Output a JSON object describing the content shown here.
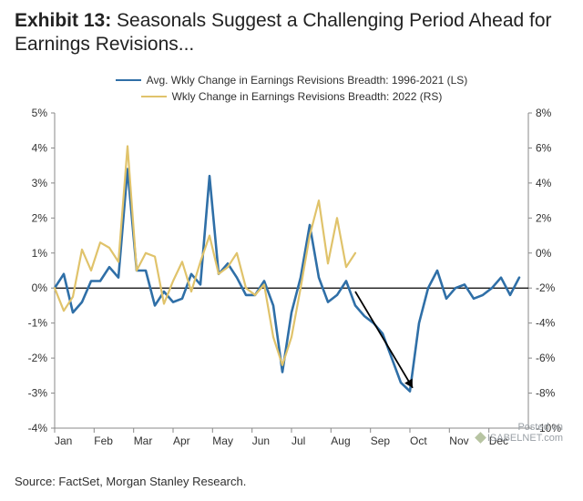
{
  "title": {
    "label": "Exhibit 13:",
    "text": "Seasonals Suggest a Challenging Period Ahead for Earnings Revisions...",
    "label_color": "#000000",
    "text_color": "#303030",
    "fontsize": 21
  },
  "chart": {
    "type": "line",
    "background_color": "#ffffff",
    "plot_left_pad": 44,
    "plot_right_pad": 44,
    "plot_top_pad": 6,
    "plot_bottom_pad": 28,
    "x": {
      "min": 0,
      "max": 52,
      "tick_positions": [
        0,
        4.33,
        8.67,
        13,
        17.33,
        21.67,
        26,
        30.33,
        34.67,
        39,
        43.33,
        47.67
      ],
      "tick_labels": [
        "Jan",
        "Feb",
        "Mar",
        "Apr",
        "May",
        "Jun",
        "Jul",
        "Aug",
        "Sep",
        "Oct",
        "Nov",
        "Dec"
      ],
      "label_fontsize": 12
    },
    "y_left": {
      "min": -4,
      "max": 5,
      "ticks": [
        5,
        4,
        3,
        2,
        1,
        0,
        -1,
        -2,
        -3,
        -4
      ],
      "suffix": "%",
      "label_fontsize": 12,
      "zero_line_color": "#000000"
    },
    "y_right": {
      "min": -10,
      "max": 8,
      "ticks": [
        8,
        6,
        4,
        2,
        0,
        -2,
        -4,
        -6,
        -8,
        -10
      ],
      "suffix": "%",
      "label_fontsize": 12
    },
    "axis_color": "#888888",
    "legend": {
      "items": [
        {
          "label": "Avg. Wkly Change in Earnings Revisions Breadth: 1996-2021 (LS)",
          "color": "#2f6fa7",
          "width": 2.5
        },
        {
          "label": "Wkly Change in Earnings Revisions Breadth: 2022 (RS)",
          "color": "#e0c36b",
          "width": 2
        }
      ],
      "fontsize": 12
    },
    "series": [
      {
        "name": "avg-1996-2021",
        "axis": "left",
        "color": "#2f6fa7",
        "width": 2.6,
        "points": [
          [
            0,
            0.0
          ],
          [
            1,
            0.4
          ],
          [
            2,
            -0.7
          ],
          [
            3,
            -0.4
          ],
          [
            4,
            0.2
          ],
          [
            5,
            0.2
          ],
          [
            6,
            0.6
          ],
          [
            7,
            0.3
          ],
          [
            8,
            3.4
          ],
          [
            9,
            0.5
          ],
          [
            10,
            0.5
          ],
          [
            11,
            -0.5
          ],
          [
            12,
            -0.1
          ],
          [
            13,
            -0.4
          ],
          [
            14,
            -0.3
          ],
          [
            15,
            0.4
          ],
          [
            16,
            0.1
          ],
          [
            17,
            3.2
          ],
          [
            18,
            0.4
          ],
          [
            19,
            0.7
          ],
          [
            20,
            0.3
          ],
          [
            21,
            -0.2
          ],
          [
            22,
            -0.2
          ],
          [
            23,
            0.2
          ],
          [
            24,
            -0.5
          ],
          [
            25,
            -2.4
          ],
          [
            26,
            -0.7
          ],
          [
            27,
            0.3
          ],
          [
            28,
            1.8
          ],
          [
            29,
            0.3
          ],
          [
            30,
            -0.4
          ],
          [
            31,
            -0.2
          ],
          [
            32,
            0.2
          ],
          [
            33,
            -0.5
          ],
          [
            34,
            -0.8
          ],
          [
            35,
            -1.0
          ],
          [
            36,
            -1.3
          ],
          [
            37,
            -2.0
          ],
          [
            38,
            -2.7
          ],
          [
            39,
            -2.95
          ],
          [
            40,
            -1.0
          ],
          [
            41,
            0.0
          ],
          [
            42,
            0.5
          ],
          [
            43,
            -0.3
          ],
          [
            44,
            0.0
          ],
          [
            45,
            0.1
          ],
          [
            46,
            -0.3
          ],
          [
            47,
            -0.2
          ],
          [
            48,
            0.0
          ],
          [
            49,
            0.3
          ],
          [
            50,
            -0.2
          ],
          [
            51,
            0.3
          ]
        ]
      },
      {
        "name": "2022",
        "axis": "right",
        "color": "#e0c36b",
        "width": 2.2,
        "points": [
          [
            0,
            -2.0
          ],
          [
            1,
            -3.3
          ],
          [
            2,
            -2.5
          ],
          [
            3,
            0.2
          ],
          [
            4,
            -1.0
          ],
          [
            5,
            0.6
          ],
          [
            6,
            0.3
          ],
          [
            7,
            -0.5
          ],
          [
            8,
            6.1
          ],
          [
            9,
            -1.0
          ],
          [
            10,
            0.0
          ],
          [
            11,
            -0.2
          ],
          [
            12,
            -2.9
          ],
          [
            13,
            -1.6
          ],
          [
            14,
            -0.5
          ],
          [
            15,
            -2.2
          ],
          [
            16,
            -0.5
          ],
          [
            17,
            1.0
          ],
          [
            18,
            -1.2
          ],
          [
            19,
            -0.8
          ],
          [
            20,
            0.0
          ],
          [
            21,
            -2.0
          ],
          [
            22,
            -2.4
          ],
          [
            23,
            -1.8
          ],
          [
            24,
            -4.8
          ],
          [
            25,
            -6.4
          ],
          [
            26,
            -4.8
          ],
          [
            27,
            -2.0
          ],
          [
            28,
            1.0
          ],
          [
            29,
            3.0
          ],
          [
            30,
            -0.6
          ],
          [
            31,
            2.0
          ],
          [
            32,
            -0.8
          ],
          [
            33,
            0.0
          ]
        ]
      }
    ],
    "arrow": {
      "from": [
        33,
        -0.1
      ],
      "to": [
        39.3,
        -2.85
      ],
      "from_axis": "left",
      "color": "#000000",
      "width": 1.8
    }
  },
  "source": {
    "text": "Source: FactSet, Morgan Stanley Research.",
    "fontsize": 13,
    "color": "#303030"
  },
  "watermark": {
    "line1": "Posted on",
    "line2": "ISABELNET.com",
    "color": "#9aa0a6",
    "diamond_color": "#b7c4a2"
  }
}
